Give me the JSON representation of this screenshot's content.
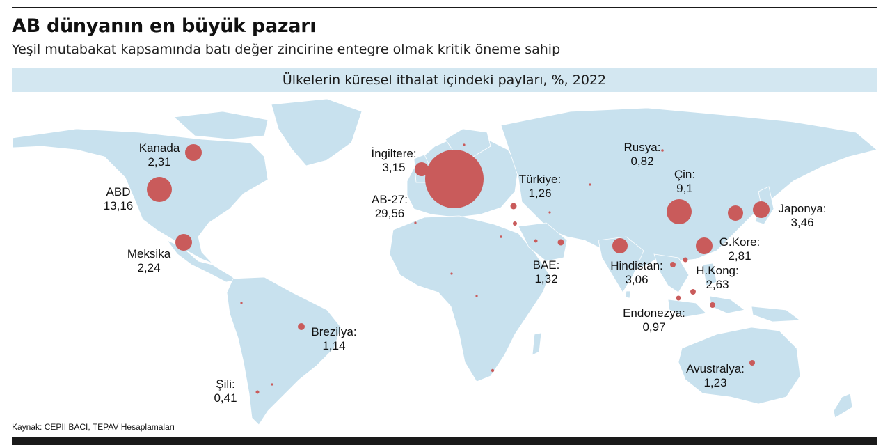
{
  "header": {
    "title": "AB dünyanın en büyük pazarı",
    "subtitle": "Yeşil mutabakat kapsamında batı değer zincirine entegre olmak kritik öneme sahip",
    "banner": "Ülkelerin küresel ithalat içindeki payları, %, 2022"
  },
  "colors": {
    "land": "#c8e1ee",
    "marker": "#c95b5b",
    "banner": "#d3e7f1"
  },
  "countries": [
    {
      "name": "Kanada",
      "value": "2,31"
    },
    {
      "name": "ABD",
      "value": "13,16"
    },
    {
      "name": "Meksika",
      "value": "2,24"
    },
    {
      "name": "Brezilya:",
      "value": "1,14"
    },
    {
      "name": "Şili:",
      "value": "0,41"
    },
    {
      "name": "İngiltere:",
      "value": "3,15"
    },
    {
      "name": "AB-27:",
      "value": "29,56"
    },
    {
      "name": "Türkiye:",
      "value": "1,26"
    },
    {
      "name": "Rusya:",
      "value": "0,82"
    },
    {
      "name": "Çin:",
      "value": "9,1"
    },
    {
      "name": "Japonya:",
      "value": "3,46"
    },
    {
      "name": "G.Kore:",
      "value": "2,81"
    },
    {
      "name": "Hindistan:",
      "value": "3,06"
    },
    {
      "name": "H.Kong:",
      "value": "2,63"
    },
    {
      "name": "BAE:",
      "value": "1,32"
    },
    {
      "name": "Endonezya:",
      "value": "0,97"
    },
    {
      "name": "Avustralya:",
      "value": "1,23"
    }
  ],
  "footer": {
    "source": "Kaynak: CEPII BACI, TEPAV Hesaplamaları"
  }
}
